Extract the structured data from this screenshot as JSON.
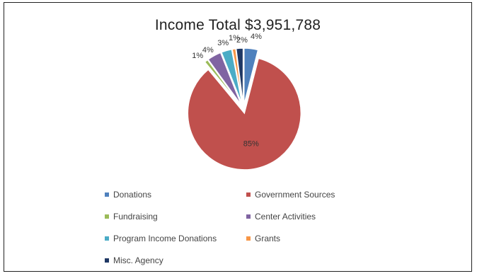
{
  "chart_data": {
    "type": "pie",
    "title": "Income Total $3,951,788",
    "categories": [
      "Donations",
      "Government Sources",
      "Fundraising",
      "Center Activities",
      "Program Income Donations",
      "Grants",
      "Misc. Agency"
    ],
    "values": [
      4,
      85,
      1,
      4,
      3,
      1,
      2
    ],
    "data_labels": [
      "4%",
      "85%",
      "1%",
      "4%",
      "3%",
      "1%",
      "2%"
    ],
    "colors": [
      "#4f81bd",
      "#c0504d",
      "#9bbb59",
      "#8064a2",
      "#4bacc6",
      "#f79646",
      "#1f3864"
    ],
    "legend_position": "bottom"
  }
}
